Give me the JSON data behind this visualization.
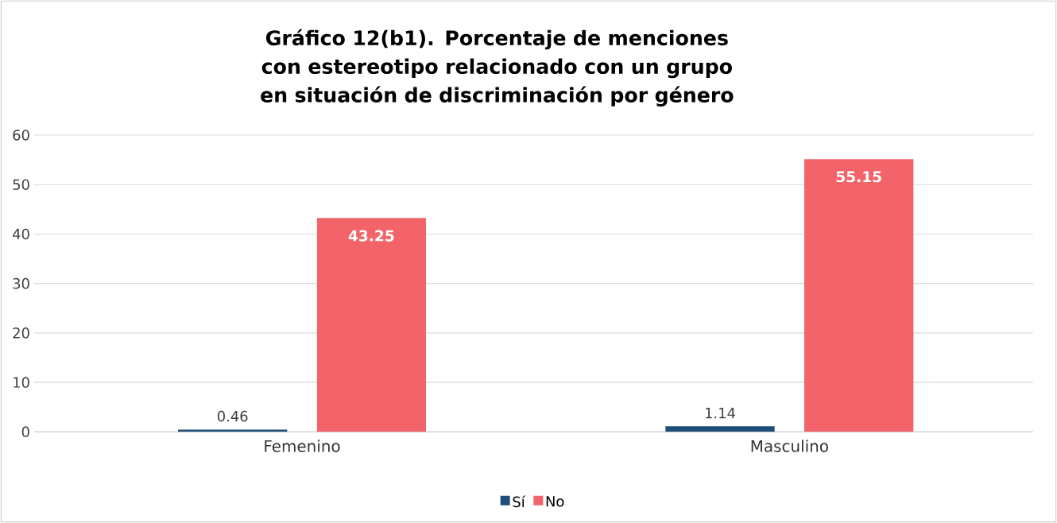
{
  "chart_data": {
    "type": "bar",
    "title": "Gráfico 12(b1). Porcentaje de menciones con estereotipo relacionado con un grupo en situación de discriminación por género",
    "categories": [
      "Femenino",
      "Masculino"
    ],
    "series": [
      {
        "name": "Sí",
        "color": "#1f4e79",
        "values": [
          0.46,
          1.14
        ]
      },
      {
        "name": "No",
        "color": "#f26469",
        "values": [
          43.25,
          55.15
        ]
      }
    ],
    "ylim": [
      0,
      60
    ],
    "yticks": [
      0,
      10,
      20,
      30,
      40,
      50,
      60
    ],
    "grid": "y",
    "legend": "bottom",
    "data_labels": true
  }
}
